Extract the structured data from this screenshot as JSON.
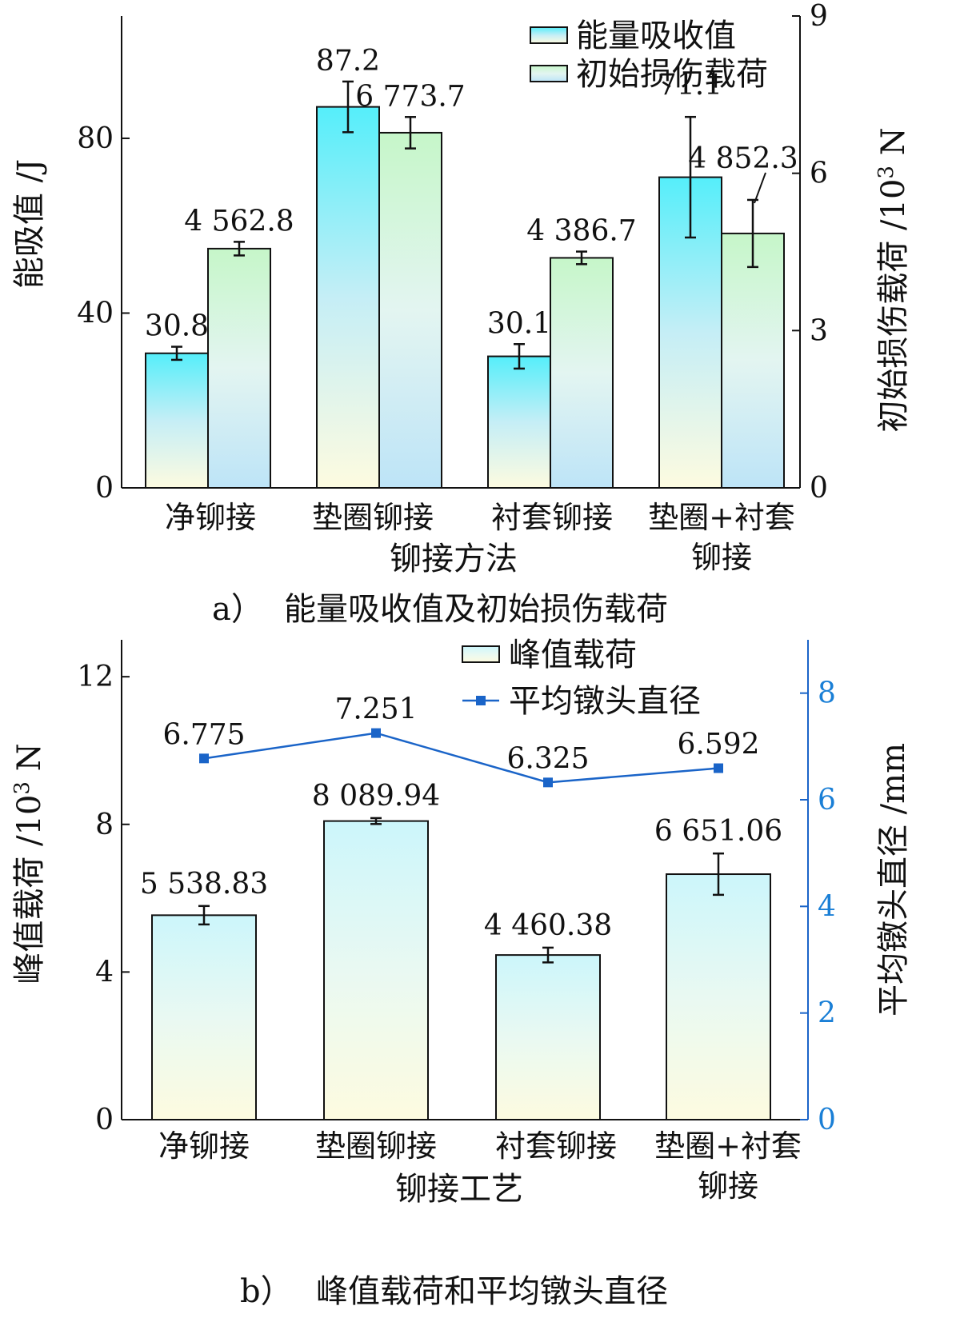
{
  "chart_data": [
    {
      "type": "bar",
      "caption_prefix": "a）",
      "caption": "能量吸收值及初始损伤载荷",
      "xlabel": "铆接方法",
      "ylabel": "能吸值 /J",
      "y2label": "初始损伤载荷 /10³ N",
      "y2label_main": "初始损伤载荷 /10",
      "y2label_sup": "3",
      "y2label_unit": " N",
      "categories": [
        "净铆接",
        "垫圈铆接",
        "衬套铆接",
        "垫圈+衬套 铆接"
      ],
      "category_lines": [
        [
          "净铆接"
        ],
        [
          "垫圈铆接"
        ],
        [
          "衬套铆接"
        ],
        [
          "垫圈+衬套",
          "铆接"
        ]
      ],
      "ylim": [
        0,
        108
      ],
      "yticks": [
        0,
        40,
        80
      ],
      "y2lim": [
        0,
        9
      ],
      "y2ticks": [
        0,
        3,
        6,
        9
      ],
      "grid": false,
      "legend_position": "top-right",
      "series": [
        {
          "name": "能量吸收值",
          "axis": "left",
          "values": [
            30.8,
            87.2,
            30.1,
            71.1
          ],
          "labels": [
            "30.8",
            "87.2",
            "30.1",
            "71.1"
          ],
          "error": [
            1.5,
            5.8,
            2.8,
            13.8
          ],
          "gradient": [
            "#55eefa",
            "#c5eef6",
            "#fdfbe0"
          ]
        },
        {
          "name": "初始损伤载荷",
          "axis": "right",
          "values": [
            4562.8,
            6773.7,
            4386.7,
            4852.3
          ],
          "labels": [
            "4 562.8",
            "6 773.7",
            "4 386.7",
            "4 852.3"
          ],
          "error": [
            130,
            300,
            120,
            640
          ],
          "gradient": [
            "#c6f6c9",
            "#e3f5f1",
            "#bde4f7"
          ]
        }
      ]
    },
    {
      "type": "bar",
      "caption_prefix": "b）",
      "caption": "峰值载荷和平均镦头直径",
      "xlabel": "铆接工艺",
      "ylabel": "峰值载荷 /10³ N",
      "ylabel_main": "峰值载荷 /10",
      "ylabel_sup": "3",
      "ylabel_unit": " N",
      "y2label": "平均镦头直径 /mm",
      "categories": [
        "净铆接",
        "垫圈铆接",
        "衬套铆接",
        "垫圈+衬套 铆接"
      ],
      "category_lines": [
        [
          "净铆接"
        ],
        [
          "垫圈铆接"
        ],
        [
          "衬套铆接"
        ],
        [
          "垫圈+衬套",
          "铆接"
        ]
      ],
      "ylim": [
        0,
        13
      ],
      "yticks": [
        0,
        4,
        8,
        12
      ],
      "y2lim": [
        0,
        9
      ],
      "y2ticks": [
        0,
        2,
        4,
        6,
        8
      ],
      "grid": false,
      "legend_position": "top-right",
      "series": [
        {
          "name": "峰值载荷",
          "axis": "left",
          "kind": "bar",
          "values": [
            5538.83,
            8089.94,
            4460.38,
            6651.06
          ],
          "labels": [
            "5 538.83",
            "8 089.94",
            "4 460.38",
            "6 651.06"
          ],
          "error": [
            250,
            80,
            200,
            560
          ],
          "gradient": [
            "#ccf6fb",
            "#e9f9f2",
            "#fdfbe0"
          ]
        },
        {
          "name": "平均镦头直径",
          "axis": "right",
          "kind": "line",
          "color": "#1a64c8",
          "values": [
            6.775,
            7.251,
            6.325,
            6.592
          ],
          "labels": [
            "6.775",
            "7.251",
            "6.325",
            "6.592"
          ]
        }
      ]
    }
  ]
}
